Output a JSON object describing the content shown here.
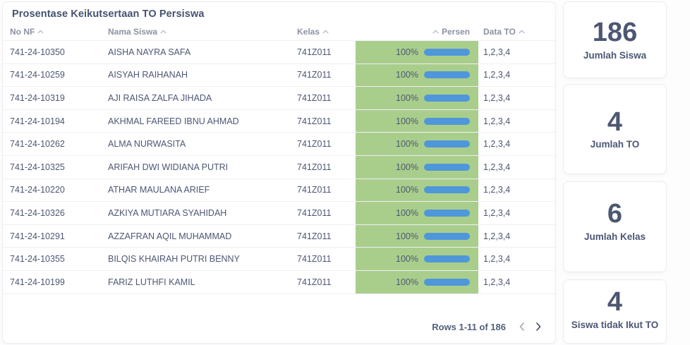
{
  "table": {
    "title": "Prosentase Keikutsertaan TO Persiswa",
    "columns": [
      {
        "label": "No NF"
      },
      {
        "label": "Nama Siswa"
      },
      {
        "label": "Kelas"
      },
      {
        "label": "Persen"
      },
      {
        "label": "Data TO"
      }
    ],
    "rows": [
      {
        "no_nf": "741-24-10350",
        "nama_siswa": "AISHA NAYRA SAFA",
        "kelas": "741Z011",
        "persen": "100%",
        "persen_value": 100,
        "data_to": "1,2,3,4"
      },
      {
        "no_nf": "741-24-10259",
        "nama_siswa": "AISYAH RAIHANAH",
        "kelas": "741Z011",
        "persen": "100%",
        "persen_value": 100,
        "data_to": "1,2,3,4"
      },
      {
        "no_nf": "741-24-10319",
        "nama_siswa": "AJI RAISA ZALFA JIHADA",
        "kelas": "741Z011",
        "persen": "100%",
        "persen_value": 100,
        "data_to": "1,2,3,4"
      },
      {
        "no_nf": "741-24-10194",
        "nama_siswa": "AKHMAL FAREED IBNU AHMAD",
        "kelas": "741Z011",
        "persen": "100%",
        "persen_value": 100,
        "data_to": "1,2,3,4"
      },
      {
        "no_nf": "741-24-10262",
        "nama_siswa": "ALMA NURWASITA",
        "kelas": "741Z011",
        "persen": "100%",
        "persen_value": 100,
        "data_to": "1,2,3,4"
      },
      {
        "no_nf": "741-24-10325",
        "nama_siswa": "ARIFAH DWI WIDIANA PUTRI",
        "kelas": "741Z011",
        "persen": "100%",
        "persen_value": 100,
        "data_to": "1,2,3,4"
      },
      {
        "no_nf": "741-24-10220",
        "nama_siswa": "ATHAR MAULANA ARIEF",
        "kelas": "741Z011",
        "persen": "100%",
        "persen_value": 100,
        "data_to": "1,2,3,4"
      },
      {
        "no_nf": "741-24-10326",
        "nama_siswa": "AZKIYA MUTIARA SYAHIDAH",
        "kelas": "741Z011",
        "persen": "100%",
        "persen_value": 100,
        "data_to": "1,2,3,4"
      },
      {
        "no_nf": "741-24-10291",
        "nama_siswa": "AZZAFRAN AQIL MUHAMMAD",
        "kelas": "741Z011",
        "persen": "100%",
        "persen_value": 100,
        "data_to": "1,2,3,4"
      },
      {
        "no_nf": "741-24-10355",
        "nama_siswa": "BILQIS KHAIRAH PUTRI BENNY",
        "kelas": "741Z011",
        "persen": "100%",
        "persen_value": 100,
        "data_to": "1,2,3,4"
      },
      {
        "no_nf": "741-24-10199",
        "nama_siswa": "FARIZ LUTHFI KAMIL",
        "kelas": "741Z011",
        "persen": "100%",
        "persen_value": 100,
        "data_to": "1,2,3,4"
      }
    ],
    "footer": {
      "rows_label": "Rows 1-11 of 186"
    }
  },
  "scalar_cards": [
    {
      "value": "186",
      "label": "Jumlah Siswa"
    },
    {
      "value": "4",
      "label": "Jumlah TO"
    },
    {
      "value": "6",
      "label": "Jumlah Kelas"
    },
    {
      "value": "4",
      "label": "Siswa tidak Ikut TO"
    }
  ],
  "icons": {
    "sort": "chevron-up",
    "prev": "chevron-left",
    "next": "chevron-right"
  },
  "colors": {
    "cell_green": "#a9ce8c",
    "minibar_blue": "#4f97da"
  }
}
